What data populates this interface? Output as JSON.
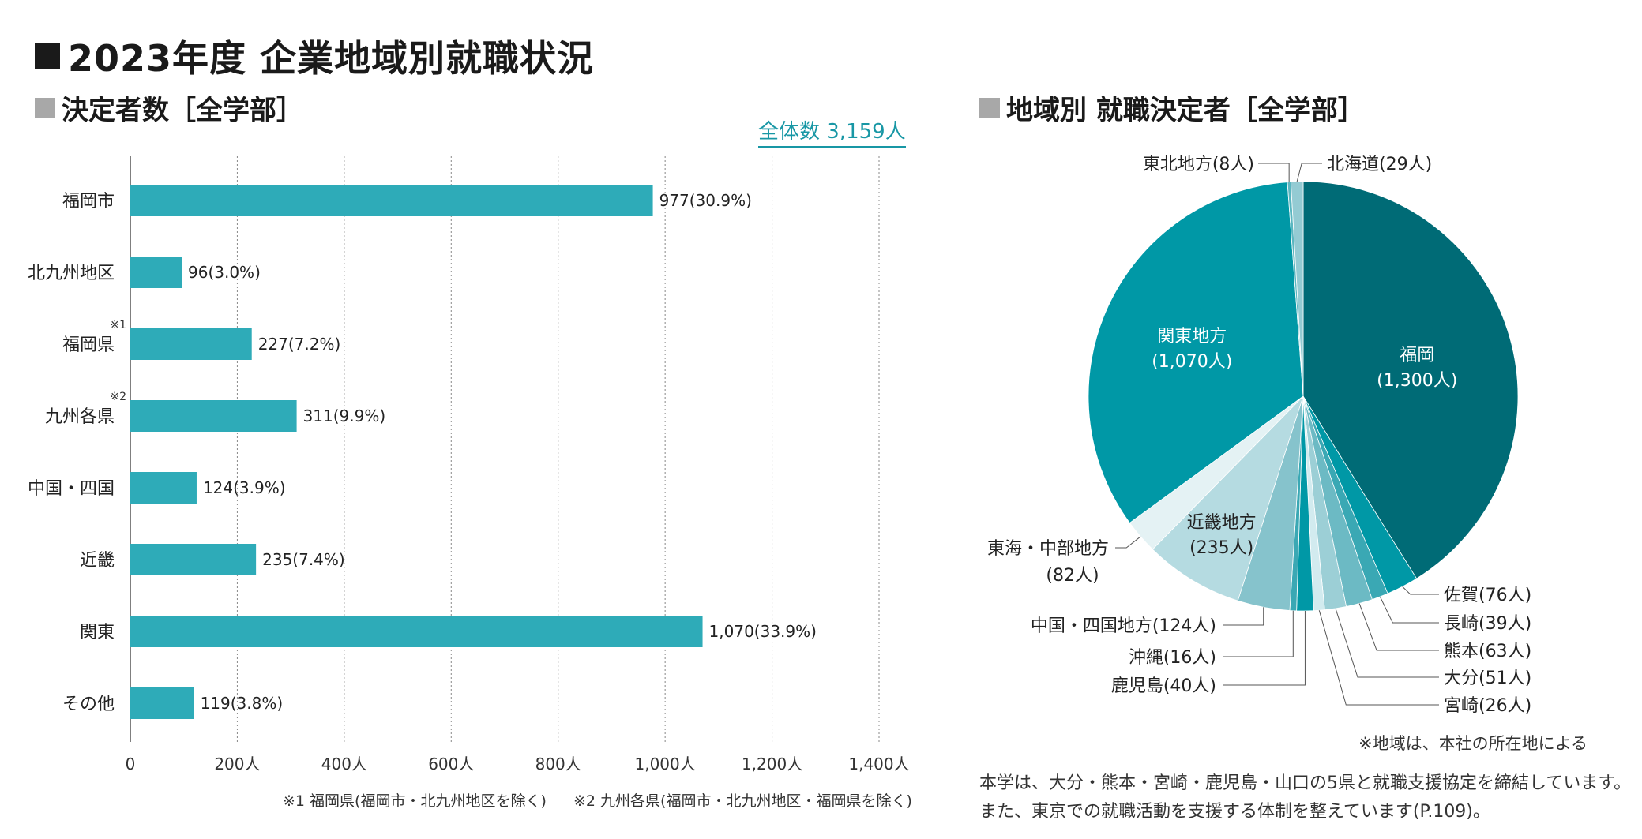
{
  "page_title": "2023年度 企業地域別就職状況",
  "left_panel": {
    "subtitle": "決定者数［全学部］",
    "total_label": "全体数 3,159人",
    "footnote1": "※1 福岡県(福岡市・北九州地区を除く)",
    "footnote2": "※2 九州各県(福岡市・北九州地区・福岡県を除く)"
  },
  "right_panel": {
    "subtitle": "地域別 就職決定者［全学部］",
    "note": "※地域は、本社の所在地による",
    "paragraph_line1": "本学は、大分・熊本・宮崎・鹿児島・山口の5県と就職支援協定を締結しています。",
    "paragraph_line2": "また、東京での就職活動を支援する体制を整えています(P.109)。"
  },
  "chart_data": [
    {
      "type": "bar",
      "orientation": "horizontal",
      "categories": [
        "福岡市",
        "北九州地区",
        "福岡県",
        "九州各県",
        "中国・四国",
        "近畿",
        "関東",
        "その他"
      ],
      "category_marks": [
        "",
        "",
        "※1",
        "※2",
        "",
        "",
        "",
        ""
      ],
      "values": [
        977,
        96,
        227,
        311,
        124,
        235,
        1070,
        119
      ],
      "data_labels": [
        "977(30.9%)",
        "96(3.0%)",
        "227(7.2%)",
        "311(9.9%)",
        "124(3.9%)",
        "235(7.4%)",
        "1,070(33.9%)",
        "119(3.8%)"
      ],
      "xlim": [
        0,
        1400
      ],
      "xticks": [
        0,
        200,
        400,
        600,
        800,
        1000,
        1200,
        1400
      ],
      "xtick_labels": [
        "0",
        "200人",
        "400人",
        "600人",
        "800人",
        "1,000人",
        "1,200人",
        "1,400人"
      ],
      "grid": "vertical-dotted",
      "bar_color": "#2eabb8"
    },
    {
      "type": "pie",
      "start": "top",
      "direction": "clockwise",
      "slices": [
        {
          "label": "福岡",
          "value": 1300,
          "display": "1,300人",
          "color": "#006b76",
          "label_position": "inside"
        },
        {
          "label": "佐賀",
          "value": 76,
          "display": "76人",
          "color": "#0098a6",
          "label_position": "outside-right"
        },
        {
          "label": "長崎",
          "value": 39,
          "display": "39人",
          "color": "#3aa8b4",
          "label_position": "outside-right"
        },
        {
          "label": "熊本",
          "value": 63,
          "display": "63人",
          "color": "#6cbac4",
          "label_position": "outside-right"
        },
        {
          "label": "大分",
          "value": 51,
          "display": "51人",
          "color": "#9ccfd6",
          "label_position": "outside-right"
        },
        {
          "label": "宮崎",
          "value": 26,
          "display": "26人",
          "color": "#d2ebef",
          "label_position": "outside-right"
        },
        {
          "label": "鹿児島",
          "value": 40,
          "display": "40人",
          "color": "#0098a6",
          "label_position": "outside-left"
        },
        {
          "label": "沖縄",
          "value": 16,
          "display": "16人",
          "color": "#3aa8b4",
          "label_position": "outside-left"
        },
        {
          "label": "中国・四国地方",
          "value": 124,
          "display": "124人",
          "color": "#86c3cc",
          "label_position": "outside-left"
        },
        {
          "label": "近畿地方",
          "value": 235,
          "display": "235人",
          "color": "#b5dbe1",
          "label_position": "inside"
        },
        {
          "label": "東海・中部地方",
          "value": 82,
          "display": "82人",
          "color": "#e4f2f4",
          "label_position": "outside-left"
        },
        {
          "label": "関東地方",
          "value": 1070,
          "display": "1,070人",
          "color": "#0098a6",
          "label_position": "inside"
        },
        {
          "label": "東北地方",
          "value": 8,
          "display": "8人",
          "color": "#5ab6c0",
          "label_position": "outside-top"
        },
        {
          "label": "北海道",
          "value": 29,
          "display": "29人",
          "color": "#94cbd3",
          "label_position": "outside-top"
        }
      ]
    }
  ]
}
